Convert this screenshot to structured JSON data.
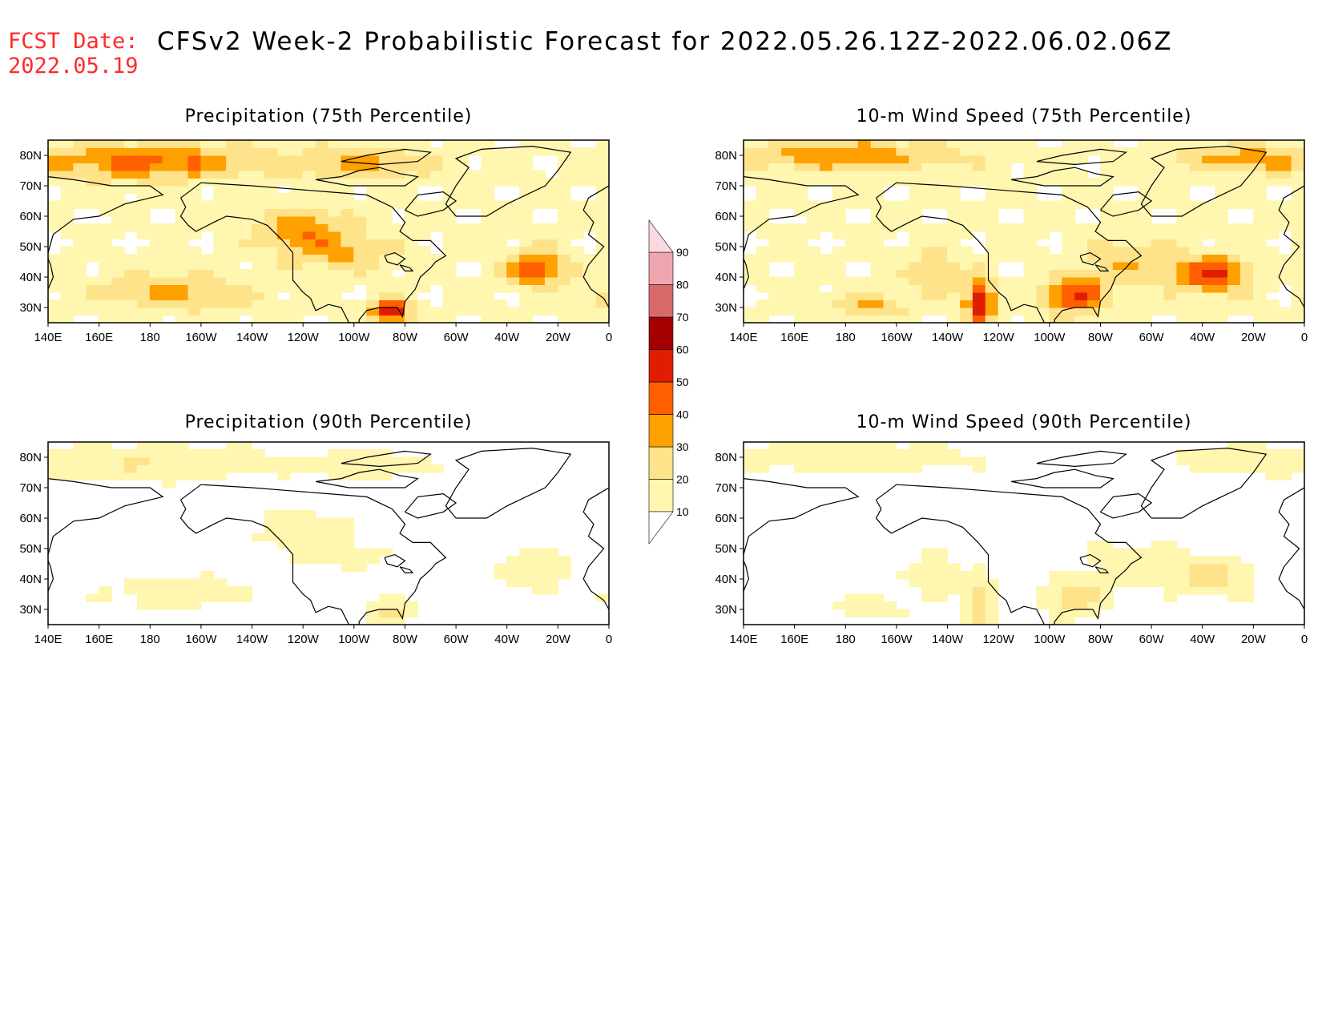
{
  "header": {
    "fcst_label": "FCST Date:",
    "fcst_date": "2022.05.19",
    "title": "CFSv2 Week-2 Probabilistic Forecast for 2022.05.26.12Z-2022.06.02.06Z"
  },
  "panels": [
    {
      "id": "precip75",
      "title": "Precipitation (75th Percentile)",
      "intensity": 1.0,
      "field": "precip"
    },
    {
      "id": "wind75",
      "title": "10-m Wind Speed (75th Percentile)",
      "intensity": 1.0,
      "field": "wind"
    },
    {
      "id": "precip90",
      "title": "Precipitation (90th Percentile)",
      "intensity": 0.45,
      "field": "precip"
    },
    {
      "id": "wind90",
      "title": "10-m Wind Speed (90th Percentile)",
      "intensity": 0.5,
      "field": "wind"
    }
  ],
  "axes": {
    "lon_labels": [
      "140E",
      "160E",
      "180",
      "160W",
      "140W",
      "120W",
      "100W",
      "80W",
      "60W",
      "40W",
      "20W",
      "0"
    ],
    "lat_labels": [
      "80N",
      "70N",
      "60N",
      "50N",
      "40N",
      "30N"
    ],
    "lon_range": [
      140,
      360
    ],
    "lat_range": [
      25,
      85
    ]
  },
  "colorbar": {
    "levels": [
      10,
      20,
      30,
      40,
      50,
      60,
      70,
      80,
      90
    ],
    "level_labels": [
      "10",
      "20",
      "30",
      "40",
      "50",
      "60",
      "70",
      "80",
      "90"
    ],
    "colors": [
      "#ffffff",
      "#fff6b0",
      "#ffe38a",
      "#ffa100",
      "#ff5f00",
      "#e01d00",
      "#a50000",
      "#d96a6a",
      "#f0a6b0",
      "#fbd9de"
    ]
  }
}
